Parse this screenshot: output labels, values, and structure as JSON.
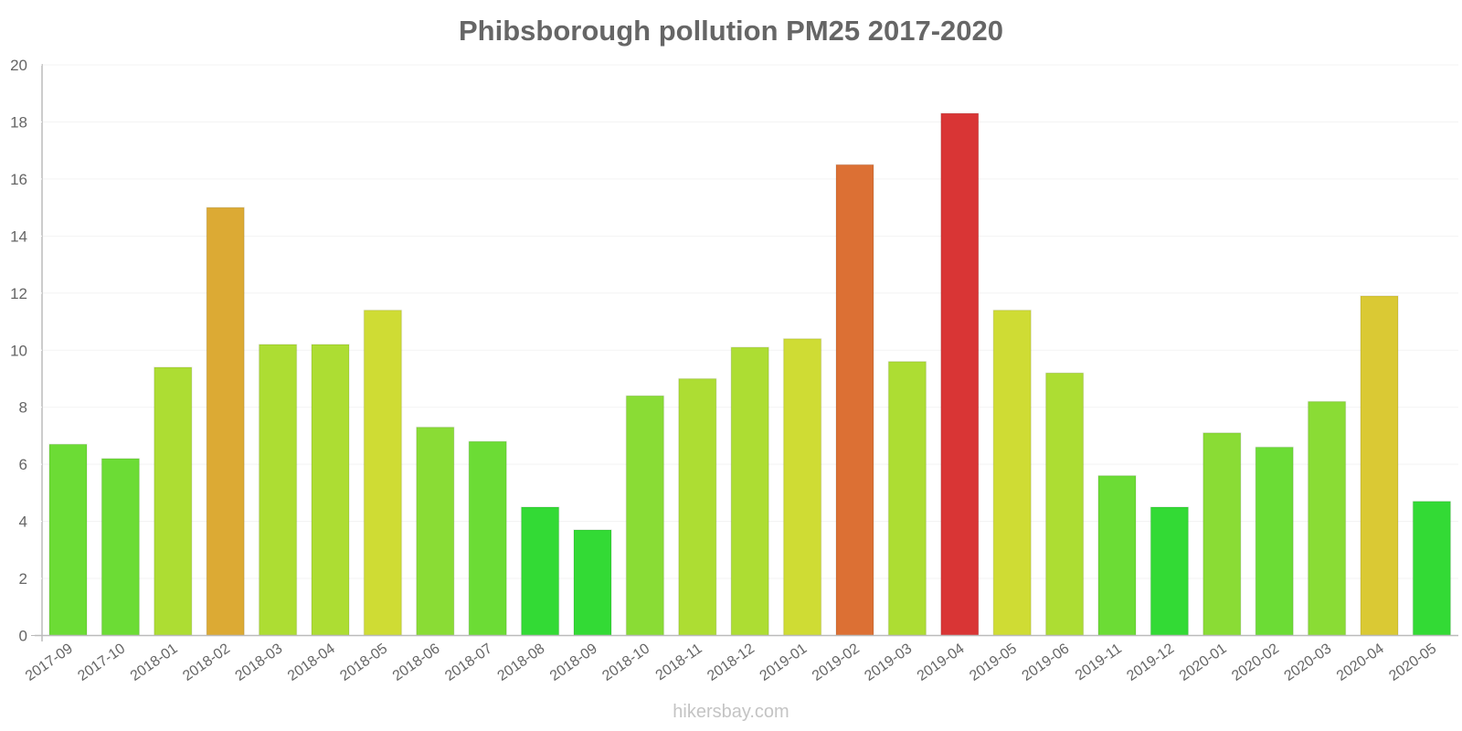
{
  "chart_data": {
    "type": "bar",
    "title": "Phibsborough pollution PM25 2017-2020",
    "xlabel": "",
    "ylabel": "",
    "ylim": [
      0,
      20
    ],
    "yticks": [
      0,
      2,
      4,
      6,
      8,
      10,
      12,
      14,
      16,
      18,
      20
    ],
    "grid": true,
    "legend": "none",
    "categories": [
      "2017-09",
      "2017-10",
      "2018-01",
      "2018-02",
      "2018-03",
      "2018-04",
      "2018-05",
      "2018-06",
      "2018-07",
      "2018-08",
      "2018-09",
      "2018-10",
      "2018-11",
      "2018-12",
      "2019-01",
      "2019-02",
      "2019-03",
      "2019-04",
      "2019-05",
      "2019-06",
      "2019-11",
      "2019-12",
      "2020-01",
      "2020-02",
      "2020-03",
      "2020-04",
      "2020-05"
    ],
    "values": [
      6.7,
      6.2,
      9.4,
      15.0,
      10.2,
      10.2,
      11.4,
      7.3,
      6.8,
      4.5,
      3.7,
      8.4,
      9.0,
      10.1,
      10.4,
      16.5,
      9.6,
      18.3,
      11.4,
      9.2,
      5.6,
      4.5,
      7.1,
      6.6,
      8.2,
      11.9,
      4.7
    ],
    "colors": [
      "#6cdc35",
      "#6cdc35",
      "#addd33",
      "#dcaa34",
      "#addd33",
      "#addd33",
      "#cfdc34",
      "#8adc35",
      "#6cdc35",
      "#33da35",
      "#33da35",
      "#8adc35",
      "#addd33",
      "#addd33",
      "#cfdc34",
      "#dc7034",
      "#addd33",
      "#d93535",
      "#cfdc34",
      "#addd33",
      "#6cdc35",
      "#33da35",
      "#8adc35",
      "#6cdc35",
      "#8adc35",
      "#dac934",
      "#33da35"
    ]
  },
  "footer": "hikersbay.com"
}
